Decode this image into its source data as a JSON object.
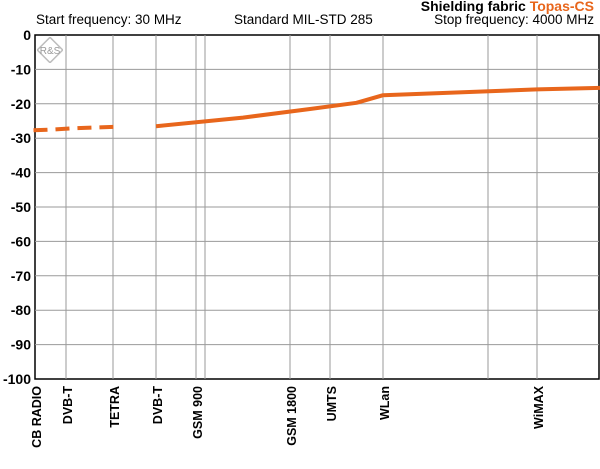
{
  "header": {
    "title_prefix": "Shielding fabric",
    "title_product": "Topas-CS",
    "start_frequency": "Start frequency: 30 MHz",
    "standard": "Standard MIL-STD 285",
    "stop_frequency": "Stop frequency: 4000 MHz"
  },
  "colors": {
    "series": "#e8661c",
    "grid": "#9a9a9a",
    "accent": "#e8661c"
  },
  "logo": {
    "name": "rs-logo",
    "text": "R&S"
  },
  "chart_data": {
    "type": "line",
    "title": "",
    "xlabel": "",
    "ylabel": "",
    "ylim": [
      -100,
      0
    ],
    "yticks": [
      0,
      -10,
      -20,
      -30,
      -40,
      -50,
      -60,
      -70,
      -80,
      -90,
      -100
    ],
    "grid": true,
    "legend": "none",
    "x_categories": [
      "CB RADIO",
      "DVB-T",
      "TETRA",
      "DVB-T",
      "GSM 900",
      "GSM 1800",
      "UMTS",
      "WLan",
      "WiMAX"
    ],
    "x_category_index": [
      0,
      1,
      2,
      3,
      4,
      5,
      6,
      7,
      8
    ],
    "series": [
      {
        "style": "dashed",
        "points": [
          [
            -0.05,
            -27.7
          ],
          [
            0.5,
            -27.5
          ],
          [
            1.2,
            -27.1
          ],
          [
            2.1,
            -26.7
          ]
        ]
      },
      {
        "style": "solid",
        "points": [
          [
            3.0,
            -26.5
          ],
          [
            4.5,
            -24.0
          ],
          [
            5.5,
            -21.5
          ],
          [
            6.5,
            -19.7
          ],
          [
            7.0,
            -17.5
          ],
          [
            8.0,
            -15.8
          ],
          [
            9.0,
            -14.7
          ]
        ]
      }
    ]
  }
}
